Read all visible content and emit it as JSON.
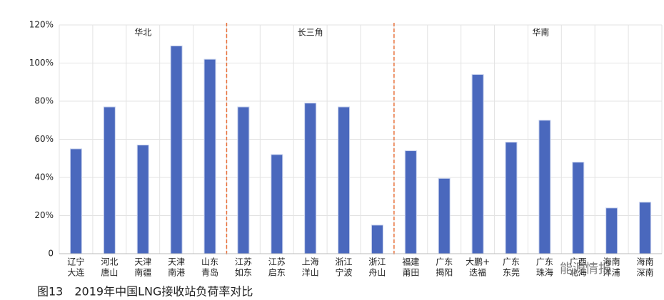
{
  "chart_data": {
    "type": "bar",
    "caption": "图13　2019年中国LNG接收站负荷率对比",
    "regions": [
      "华北",
      "长三角",
      "华南"
    ],
    "watermark": "能源情报",
    "categories": [
      [
        "辽宁",
        "大连"
      ],
      [
        "河北",
        "唐山"
      ],
      [
        "天津",
        "南疆"
      ],
      [
        "天津",
        "南港"
      ],
      [
        "山东",
        "青岛"
      ],
      [
        "江苏",
        "如东"
      ],
      [
        "江苏",
        "启东"
      ],
      [
        "上海",
        "洋山"
      ],
      [
        "浙江",
        "宁波"
      ],
      [
        "浙江",
        "舟山"
      ],
      [
        "福建",
        "莆田"
      ],
      [
        "广东",
        "揭阳"
      ],
      [
        "大鹏+",
        "迭福"
      ],
      [
        "广东",
        "东莞"
      ],
      [
        "广东",
        "珠海"
      ],
      [
        "广西",
        "北海"
      ],
      [
        "海南",
        "洋浦"
      ],
      [
        "海南",
        "深南"
      ]
    ],
    "values": [
      55,
      77,
      57,
      109,
      102,
      77,
      52,
      79,
      77,
      15,
      54,
      39.5,
      94,
      58.5,
      70,
      48,
      24,
      27
    ],
    "color": "#4a68bd",
    "ylim": [
      0,
      120
    ],
    "yticks": [
      0,
      {
        "value": 20,
        "label": "20%"
      },
      {
        "value": 40,
        "label": "40%"
      },
      {
        "value": 60,
        "label": "60%"
      },
      {
        "value": 80,
        "label": "80%"
      },
      {
        "value": 100,
        "label": "100%"
      },
      {
        "value": 120,
        "label": "120%"
      }
    ],
    "grid": true
  }
}
